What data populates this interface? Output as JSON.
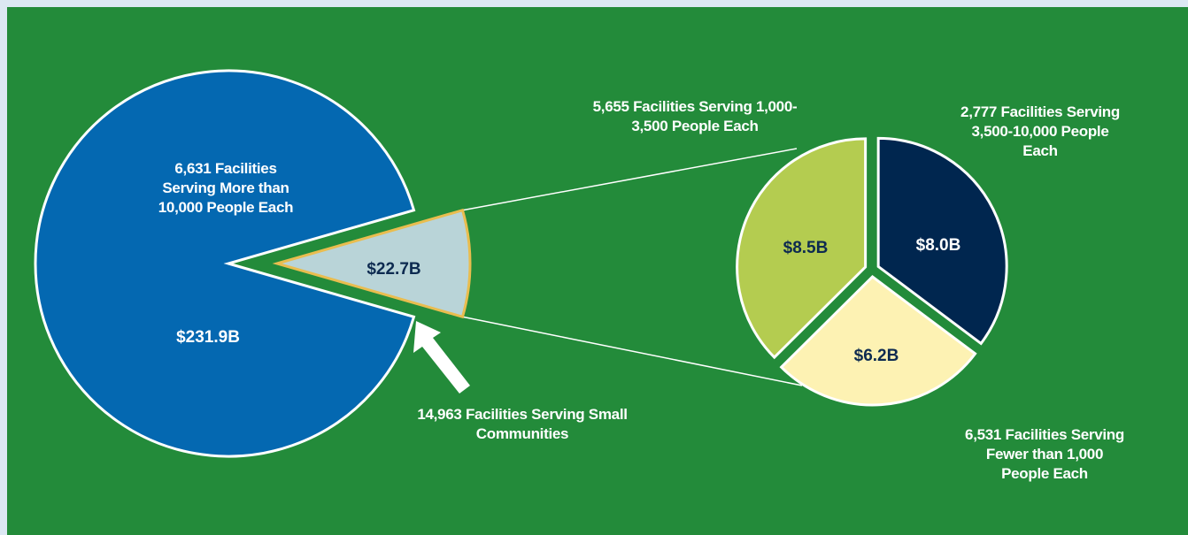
{
  "chart_data": [
    {
      "type": "pie",
      "categories": [
        "6,631 Facilities Serving More than 10,000 People Each",
        "14,963 Facilities Serving Small Communities"
      ],
      "values": [
        231.9,
        22.7
      ],
      "value_labels": [
        "$231.9B",
        "$22.7B"
      ],
      "colors": [
        "#0468b1",
        "#b9d4d8"
      ]
    },
    {
      "type": "pie",
      "categories": [
        "2,777 Facilities Serving 3,500-10,000 People Each",
        "6,531 Facilities Serving Fewer than 1,000 People Each",
        "5,655 Facilities Serving 1,000-3,500 People Each"
      ],
      "values": [
        8.0,
        6.2,
        8.5
      ],
      "value_labels": [
        "$8.0B",
        "$6.2B",
        "$8.5B"
      ],
      "colors": [
        "#00264f",
        "#fdf2b3",
        "#b4cc50"
      ]
    }
  ]
}
